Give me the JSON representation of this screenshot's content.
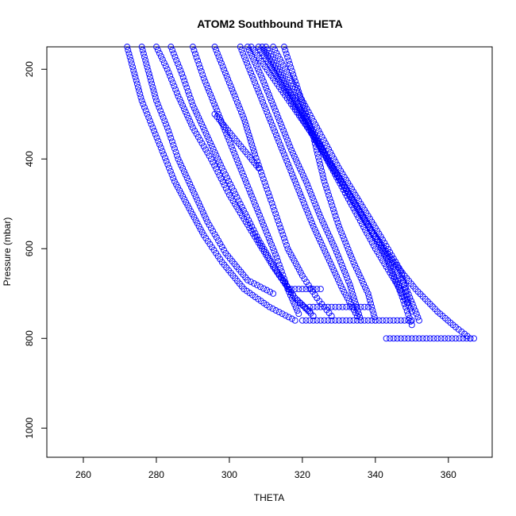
{
  "chart_data": {
    "type": "scatter",
    "title": "ATOM2 Southbound THETA",
    "xlabel": "THETA",
    "ylabel": "Pressure (mbar)",
    "xlim": [
      250,
      372
    ],
    "ylim": [
      1065,
      150
    ],
    "y_reversed": true,
    "grid": false,
    "legend": "none",
    "marker": "open-circle",
    "color": "#0000ff",
    "x_ticks": [
      260,
      280,
      300,
      320,
      340,
      360
    ],
    "y_ticks": [
      200,
      400,
      600,
      800,
      1000
    ],
    "series": [
      {
        "x": [
          272,
          274,
          276,
          279,
          282,
          285,
          289,
          293,
          298,
          304,
          311,
          318
        ],
        "y": [
          150,
          210,
          270,
          330,
          390,
          450,
          510,
          570,
          630,
          690,
          730,
          760
        ]
      },
      {
        "x": [
          276,
          278,
          280,
          283,
          286,
          290,
          294,
          299,
          305,
          312
        ],
        "y": [
          150,
          210,
          270,
          330,
          400,
          470,
          540,
          610,
          670,
          700
        ]
      },
      {
        "x": [
          280,
          283,
          286,
          290,
          295,
          300,
          306,
          312,
          318,
          323
        ],
        "y": [
          150,
          200,
          260,
          330,
          400,
          480,
          560,
          640,
          710,
          750
        ]
      },
      {
        "x": [
          284,
          287,
          290,
          294,
          298,
          303,
          308,
          313,
          318,
          322
        ],
        "y": [
          150,
          210,
          280,
          350,
          420,
          500,
          580,
          650,
          710,
          740
        ]
      },
      {
        "x": [
          290,
          293,
          297,
          301,
          305,
          309,
          313,
          316,
          319
        ],
        "y": [
          150,
          220,
          300,
          380,
          460,
          540,
          620,
          690,
          745
        ]
      },
      {
        "x": [
          296,
          300,
          304,
          307,
          310,
          313,
          316,
          320,
          324,
          328
        ],
        "y": [
          150,
          230,
          310,
          390,
          460,
          530,
          600,
          660,
          710,
          750
        ]
      },
      {
        "x": [
          303,
          307,
          311,
          315,
          319,
          323,
          327,
          331,
          335
        ],
        "y": [
          150,
          230,
          310,
          390,
          470,
          550,
          620,
          690,
          750
        ]
      },
      {
        "x": [
          305,
          309,
          313,
          317,
          321,
          325,
          329,
          333,
          336
        ],
        "y": [
          150,
          220,
          300,
          380,
          450,
          530,
          600,
          680,
          760
        ]
      },
      {
        "x": [
          306,
          312,
          318,
          324,
          330,
          336,
          342,
          348,
          352
        ],
        "y": [
          150,
          220,
          290,
          360,
          440,
          520,
          600,
          680,
          760
        ]
      },
      {
        "x": [
          308,
          314,
          320,
          326,
          332,
          338,
          343,
          347,
          350
        ],
        "y": [
          150,
          230,
          310,
          390,
          470,
          550,
          620,
          700,
          770
        ]
      },
      {
        "x": [
          309,
          315,
          321,
          327,
          333,
          339,
          345,
          351,
          357,
          362,
          366
        ],
        "y": [
          150,
          230,
          310,
          400,
          480,
          560,
          630,
          690,
          740,
          775,
          800
        ]
      },
      {
        "x": [
          310,
          316,
          322,
          328,
          334,
          340,
          346,
          350
        ],
        "y": [
          150,
          240,
          330,
          420,
          510,
          600,
          680,
          740
        ]
      },
      {
        "x": [
          312,
          318,
          324,
          330,
          336,
          342,
          347,
          349
        ],
        "y": [
          150,
          240,
          330,
          420,
          500,
          580,
          650,
          720
        ]
      },
      {
        "x": [
          315,
          319,
          323,
          326,
          330,
          334,
          338,
          340
        ],
        "y": [
          150,
          250,
          350,
          450,
          550,
          630,
          700,
          760
        ]
      },
      {
        "x": [
          343,
          347,
          351,
          355,
          359,
          363,
          367
        ],
        "y": [
          800,
          800,
          800,
          800,
          800,
          800,
          800
        ]
      },
      {
        "x": [
          320,
          325,
          330,
          335,
          340,
          345,
          350
        ],
        "y": [
          760,
          760,
          760,
          760,
          760,
          760,
          760
        ]
      },
      {
        "x": [
          322,
          326,
          330,
          334,
          338
        ],
        "y": [
          730,
          730,
          730,
          730,
          730
        ]
      },
      {
        "x": [
          316,
          319,
          322,
          325
        ],
        "y": [
          690,
          690,
          690,
          690
        ]
      },
      {
        "x": [
          296,
          299,
          302,
          305,
          308
        ],
        "y": [
          300,
          330,
          360,
          390,
          420
        ]
      }
    ]
  }
}
